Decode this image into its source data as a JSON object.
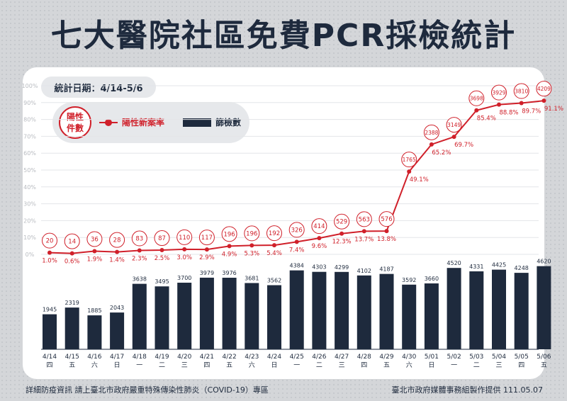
{
  "title": "七大醫院社區免費PCR採檢統計",
  "date_label": "統計日期：4/14-5/6",
  "legend": {
    "circle_label": "陽性件數",
    "line_label": "陽性新案率",
    "bar_label": "篩檢數"
  },
  "footer": {
    "left": "詳細防疫資訊 請上臺北市政府嚴重特殊傳染性肺炎（COVID-19）專區",
    "right": "臺北市政府媒體事務組製作提供 111.05.07"
  },
  "colors": {
    "bar": "#1e2a3d",
    "line": "#d0202a",
    "background": "#d4d6d9"
  },
  "chart_data": {
    "type": "bar",
    "categories": [
      "4/14",
      "4/15",
      "4/16",
      "4/17",
      "4/18",
      "4/19",
      "4/20",
      "4/21",
      "4/22",
      "4/23",
      "4/24",
      "4/25",
      "4/26",
      "4/27",
      "4/28",
      "4/29",
      "4/30",
      "5/01",
      "5/02",
      "5/03",
      "5/04",
      "5/05",
      "5/06"
    ],
    "weekdays": [
      "四",
      "五",
      "六",
      "日",
      "一",
      "二",
      "三",
      "四",
      "五",
      "六",
      "日",
      "一",
      "二",
      "三",
      "四",
      "五",
      "六",
      "日",
      "一",
      "二",
      "三",
      "四",
      "五"
    ],
    "series": [
      {
        "name": "篩檢數",
        "type": "bar",
        "values": [
          1945,
          2319,
          1885,
          2043,
          3638,
          3495,
          3700,
          3979,
          3976,
          3681,
          3562,
          4384,
          4303,
          4299,
          4102,
          4187,
          3592,
          3660,
          4520,
          4331,
          4425,
          4248,
          4620
        ]
      },
      {
        "name": "陽性新案率",
        "type": "line",
        "labels": [
          "1.0%",
          "0.6%",
          "1.9%",
          "1.4%",
          "2.3%",
          "2.5%",
          "3.0%",
          "2.9%",
          "4.9%",
          "5.3%",
          "5.4%",
          "7.4%",
          "9.6%",
          "12.3%",
          "13.7%",
          "13.8%",
          "49.1%",
          "65.2%",
          "69.7%",
          "85.4%",
          "88.8%",
          "89.7%",
          "91.1%"
        ],
        "values": [
          1.0,
          0.6,
          1.9,
          1.4,
          2.3,
          2.5,
          3.0,
          2.9,
          4.9,
          5.3,
          5.4,
          7.4,
          9.6,
          12.3,
          13.7,
          13.8,
          49.1,
          65.2,
          69.7,
          85.4,
          88.8,
          89.7,
          91.1
        ]
      },
      {
        "name": "陽性件數",
        "type": "circle",
        "values": [
          20,
          14,
          36,
          28,
          83,
          87,
          110,
          117,
          196,
          196,
          192,
          326,
          414,
          529,
          563,
          576,
          1765,
          2388,
          3149,
          3698,
          3929,
          3810,
          4209
        ]
      }
    ],
    "y_ticks": [
      "0%",
      "10%",
      "20%",
      "30%",
      "40%",
      "50%",
      "60%",
      "70%",
      "80%",
      "90%",
      "100%"
    ],
    "ylim_rate": [
      0,
      100
    ]
  }
}
